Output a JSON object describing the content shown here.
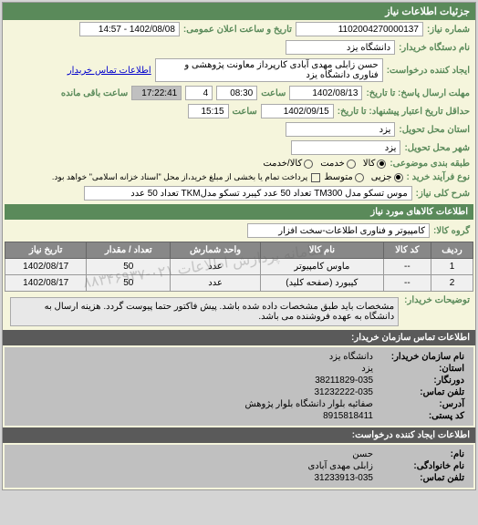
{
  "header": "جزئیات اطلاعات نیاز",
  "fields": {
    "request_no_label": "شماره نیاز:",
    "request_no": "1102004270000137",
    "datetime_label": "تاریخ و ساعت اعلان عمومی:",
    "datetime": "1402/08/08 - 14:57",
    "org_label": "نام دستگاه خریدار:",
    "org": "دانشگاه یزد",
    "creator_label": "ایجاد کننده درخواست:",
    "creator": "حسن زابلی مهدی آبادی کارپرداز معاونت پژوهشی و فناوری دانشگاه یزد",
    "contact_link": "اطلاعات تماس خریدار",
    "deadline_send_label": "مهلت ارسال پاسخ: تا تاریخ:",
    "deadline_send_date": "1402/08/13",
    "time_label": "ساعت",
    "deadline_send_time": "08:30",
    "remaining_days": "4",
    "remaining_time": "17:22:41",
    "remaining_suffix": "ساعت باقی مانده",
    "validity_label": "حداقل تاریخ اعتبار پیشنهاد: تا تاریخ:",
    "validity_date": "1402/09/15",
    "validity_time": "15:15",
    "province_label": "استان محل تحویل:",
    "province": "یزد",
    "city_label": "شهر محل تحویل:",
    "city": "یزد",
    "category_label": "طبقه بندی موضوعی:",
    "cat_goods": "کالا",
    "cat_service": "خدمت",
    "cat_goods_service": "کالا/خدمت",
    "process_label": "نوع فرآیند خرید :",
    "proc_small": "جزیی",
    "proc_medium": "متوسط",
    "proc_note": "پرداخت تمام یا بخشی از مبلغ خرید،از محل \"اسناد خزانه اسلامی\" خواهد بود.",
    "desc_main_label": "شرح کلی نیاز:",
    "desc_main": "موس تسکو مدل TM300 تعداد 50 عدد کیبرد تسکو مدلTKM تعداد 50 عدد"
  },
  "goods_section": "اطلاعات کالاهای مورد نیاز",
  "goods_group_label": "گروه کالا:",
  "goods_group": "کامپیوتر و فناوری اطلاعات-سخت افزار",
  "table": {
    "headers": [
      "ردیف",
      "کد کالا",
      "نام کالا",
      "واحد شمارش",
      "تعداد / مقدار",
      "تاریخ نیاز"
    ],
    "rows": [
      [
        "1",
        "--",
        "ماوس کامپیوتر",
        "عدد",
        "50",
        "1402/08/17"
      ],
      [
        "2",
        "--",
        "کیبورد (صفحه کلید)",
        "عدد",
        "50",
        "1402/08/17"
      ]
    ]
  },
  "buyer_note_label": "توضیحات خریدار:",
  "buyer_note": "مشخصات باید طبق مشخصات داده شده باشد. پیش فاکتور حتما پیوست گردد. هزینه ارسال به دانشگاه به عهده فروشنده می باشد.",
  "contact_org": {
    "header": "اطلاعات تماس سازمان خریدار:",
    "org_name_label": "نام سازمان خریدار:",
    "org_name": "دانشگاه یزد",
    "province_label": "استان:",
    "province": "یزد",
    "phone_label": "دورنگار:",
    "phone": "38211829-035",
    "fax_label": "تلفن تماس:",
    "fax": "31232222-035",
    "postal_label": "آدرس:",
    "postal": "صفائیه بلوار دانشگاه بلوار پژوهش",
    "code_label": "کد پستی:",
    "code": "8915818411"
  },
  "contact_creator": {
    "header": "اطلاعات ایجاد کننده درخواست:",
    "name_label": "نام:",
    "name": "حسن",
    "family_label": "نام خانوادگی:",
    "family": "زابلی مهدی آبادی",
    "phone_label": "تلفن تماس:",
    "phone": "31233913-035"
  },
  "watermark": "سامانه پردازش اطلاعات   ۰۲۱-۸۸۳۴۶۹۳۷"
}
